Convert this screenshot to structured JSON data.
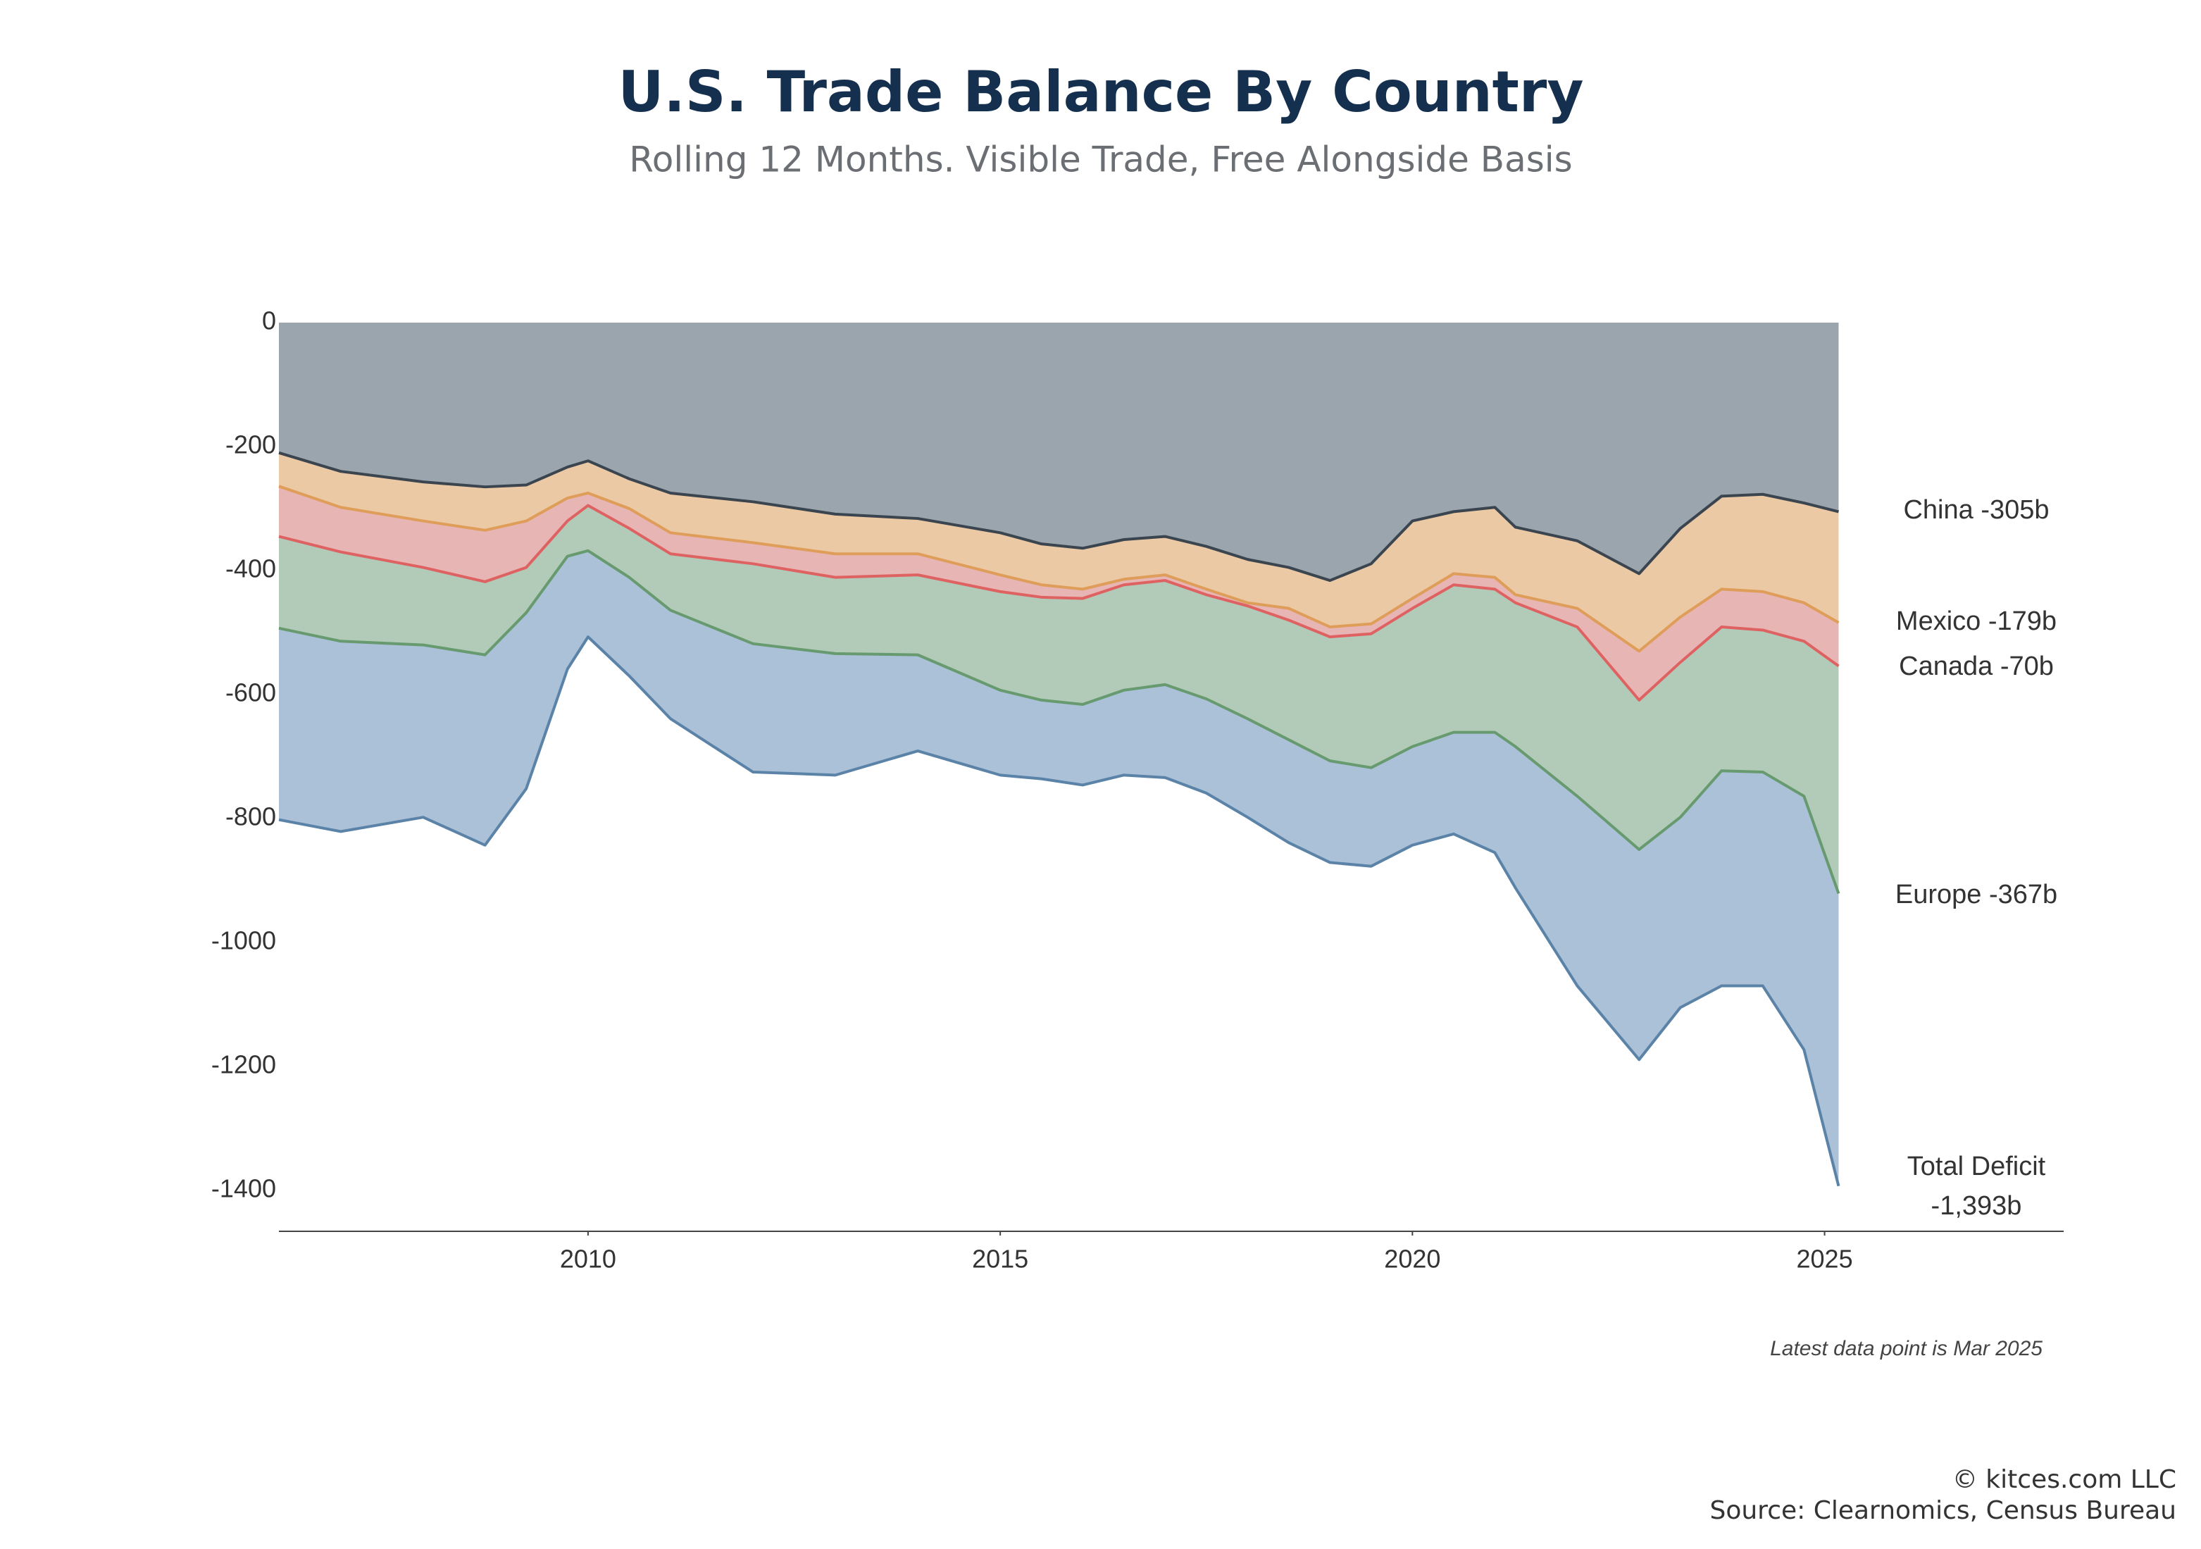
{
  "chart_data": {
    "type": "stacked_area",
    "title": "U.S. Trade Balance By Country",
    "subtitle": "Rolling 12 Months. Visible Trade, Free Alongside Basis",
    "note": "Latest data point is Mar 2025",
    "credits": [
      "© kitces.com LLC",
      "Source: Clearnomics, Census Bureau"
    ],
    "x": [
      2006.25,
      2007,
      2008,
      2008.75,
      2009.25,
      2009.75,
      2010,
      2010.5,
      2011,
      2012,
      2013,
      2014,
      2015,
      2015.5,
      2016,
      2016.5,
      2017,
      2017.5,
      2018,
      2018.5,
      2019,
      2019.5,
      2020,
      2020.5,
      2021,
      2021.25,
      2022,
      2022.75,
      2023.25,
      2023.75,
      2024.25,
      2024.75,
      2025.17
    ],
    "series": [
      {
        "name": "China",
        "last_value_label": "-305b",
        "color": "#9ba5ae",
        "line_color": "#3b4550",
        "values": [
          -210,
          -240,
          -257,
          -265,
          -262,
          -233,
          -223,
          -252,
          -275,
          -289,
          -309,
          -316,
          -339,
          -357,
          -364,
          -350,
          -345,
          -361,
          -382,
          -395,
          -416,
          -389,
          -320,
          -305,
          -298,
          -330,
          -352,
          -405,
          -332,
          -280,
          -277,
          -291,
          -305
        ]
      },
      {
        "name": "Mexico",
        "last_value_label": "-179b",
        "color": "#ecc9a5",
        "line_color": "#df9d5a",
        "values": [
          -54,
          -58,
          -63,
          -70,
          -58,
          -50,
          -52,
          -48,
          -64,
          -66,
          -64,
          -57,
          -68,
          -66,
          -66,
          -64,
          -62,
          -69,
          -70,
          -66,
          -75,
          -97,
          -125,
          -100,
          -113,
          -109,
          -109,
          -125,
          -143,
          -150,
          -157,
          -161,
          -179
        ]
      },
      {
        "name": "Canada",
        "last_value_label": "-70b",
        "color": "#e8b5b5",
        "line_color": "#df6262",
        "values": [
          -81,
          -72,
          -75,
          -83,
          -75,
          -37,
          -20,
          -32,
          -34,
          -34,
          -38,
          -34,
          -27,
          -20,
          -15,
          -9,
          -9,
          -9,
          -5,
          -19,
          -16,
          -16,
          -16,
          -18,
          -19,
          -13,
          -30,
          -79,
          -73,
          -61,
          -62,
          -62,
          -70
        ]
      },
      {
        "name": "Europe",
        "last_value_label": "-367b",
        "color": "#b1cbb8",
        "line_color": "#679a6f",
        "values": [
          -148,
          -144,
          -125,
          -118,
          -73,
          -57,
          -73,
          -79,
          -91,
          -129,
          -123,
          -129,
          -159,
          -166,
          -171,
          -170,
          -168,
          -168,
          -182,
          -193,
          -200,
          -216,
          -223,
          -238,
          -231,
          -232,
          -273,
          -241,
          -250,
          -232,
          -229,
          -250,
          -367
        ]
      }
    ],
    "total": {
      "name": "Total Deficit",
      "last_value_label": "-1,393b",
      "color": "#aac1d7",
      "line_color": "#5b83a8",
      "values": [
        -802,
        -821,
        -798,
        -843,
        -752,
        -559,
        -507,
        -570,
        -639,
        -725,
        -730,
        -691,
        -730,
        -736,
        -746,
        -730,
        -734,
        -759,
        -798,
        -839,
        -871,
        -877,
        -843,
        -825,
        -855,
        -912,
        -1070,
        -1189,
        -1105,
        -1070,
        -1070,
        -1173,
        -1393
      ]
    },
    "xlim": [
      2006.25,
      2027.9
    ],
    "xticks": [
      2010,
      2015,
      2020,
      2025
    ],
    "ylim": [
      -1466,
      0
    ],
    "yticks": [
      0,
      -200,
      -400,
      -600,
      -800,
      -1000,
      -1200,
      -1400
    ],
    "grid": false
  }
}
